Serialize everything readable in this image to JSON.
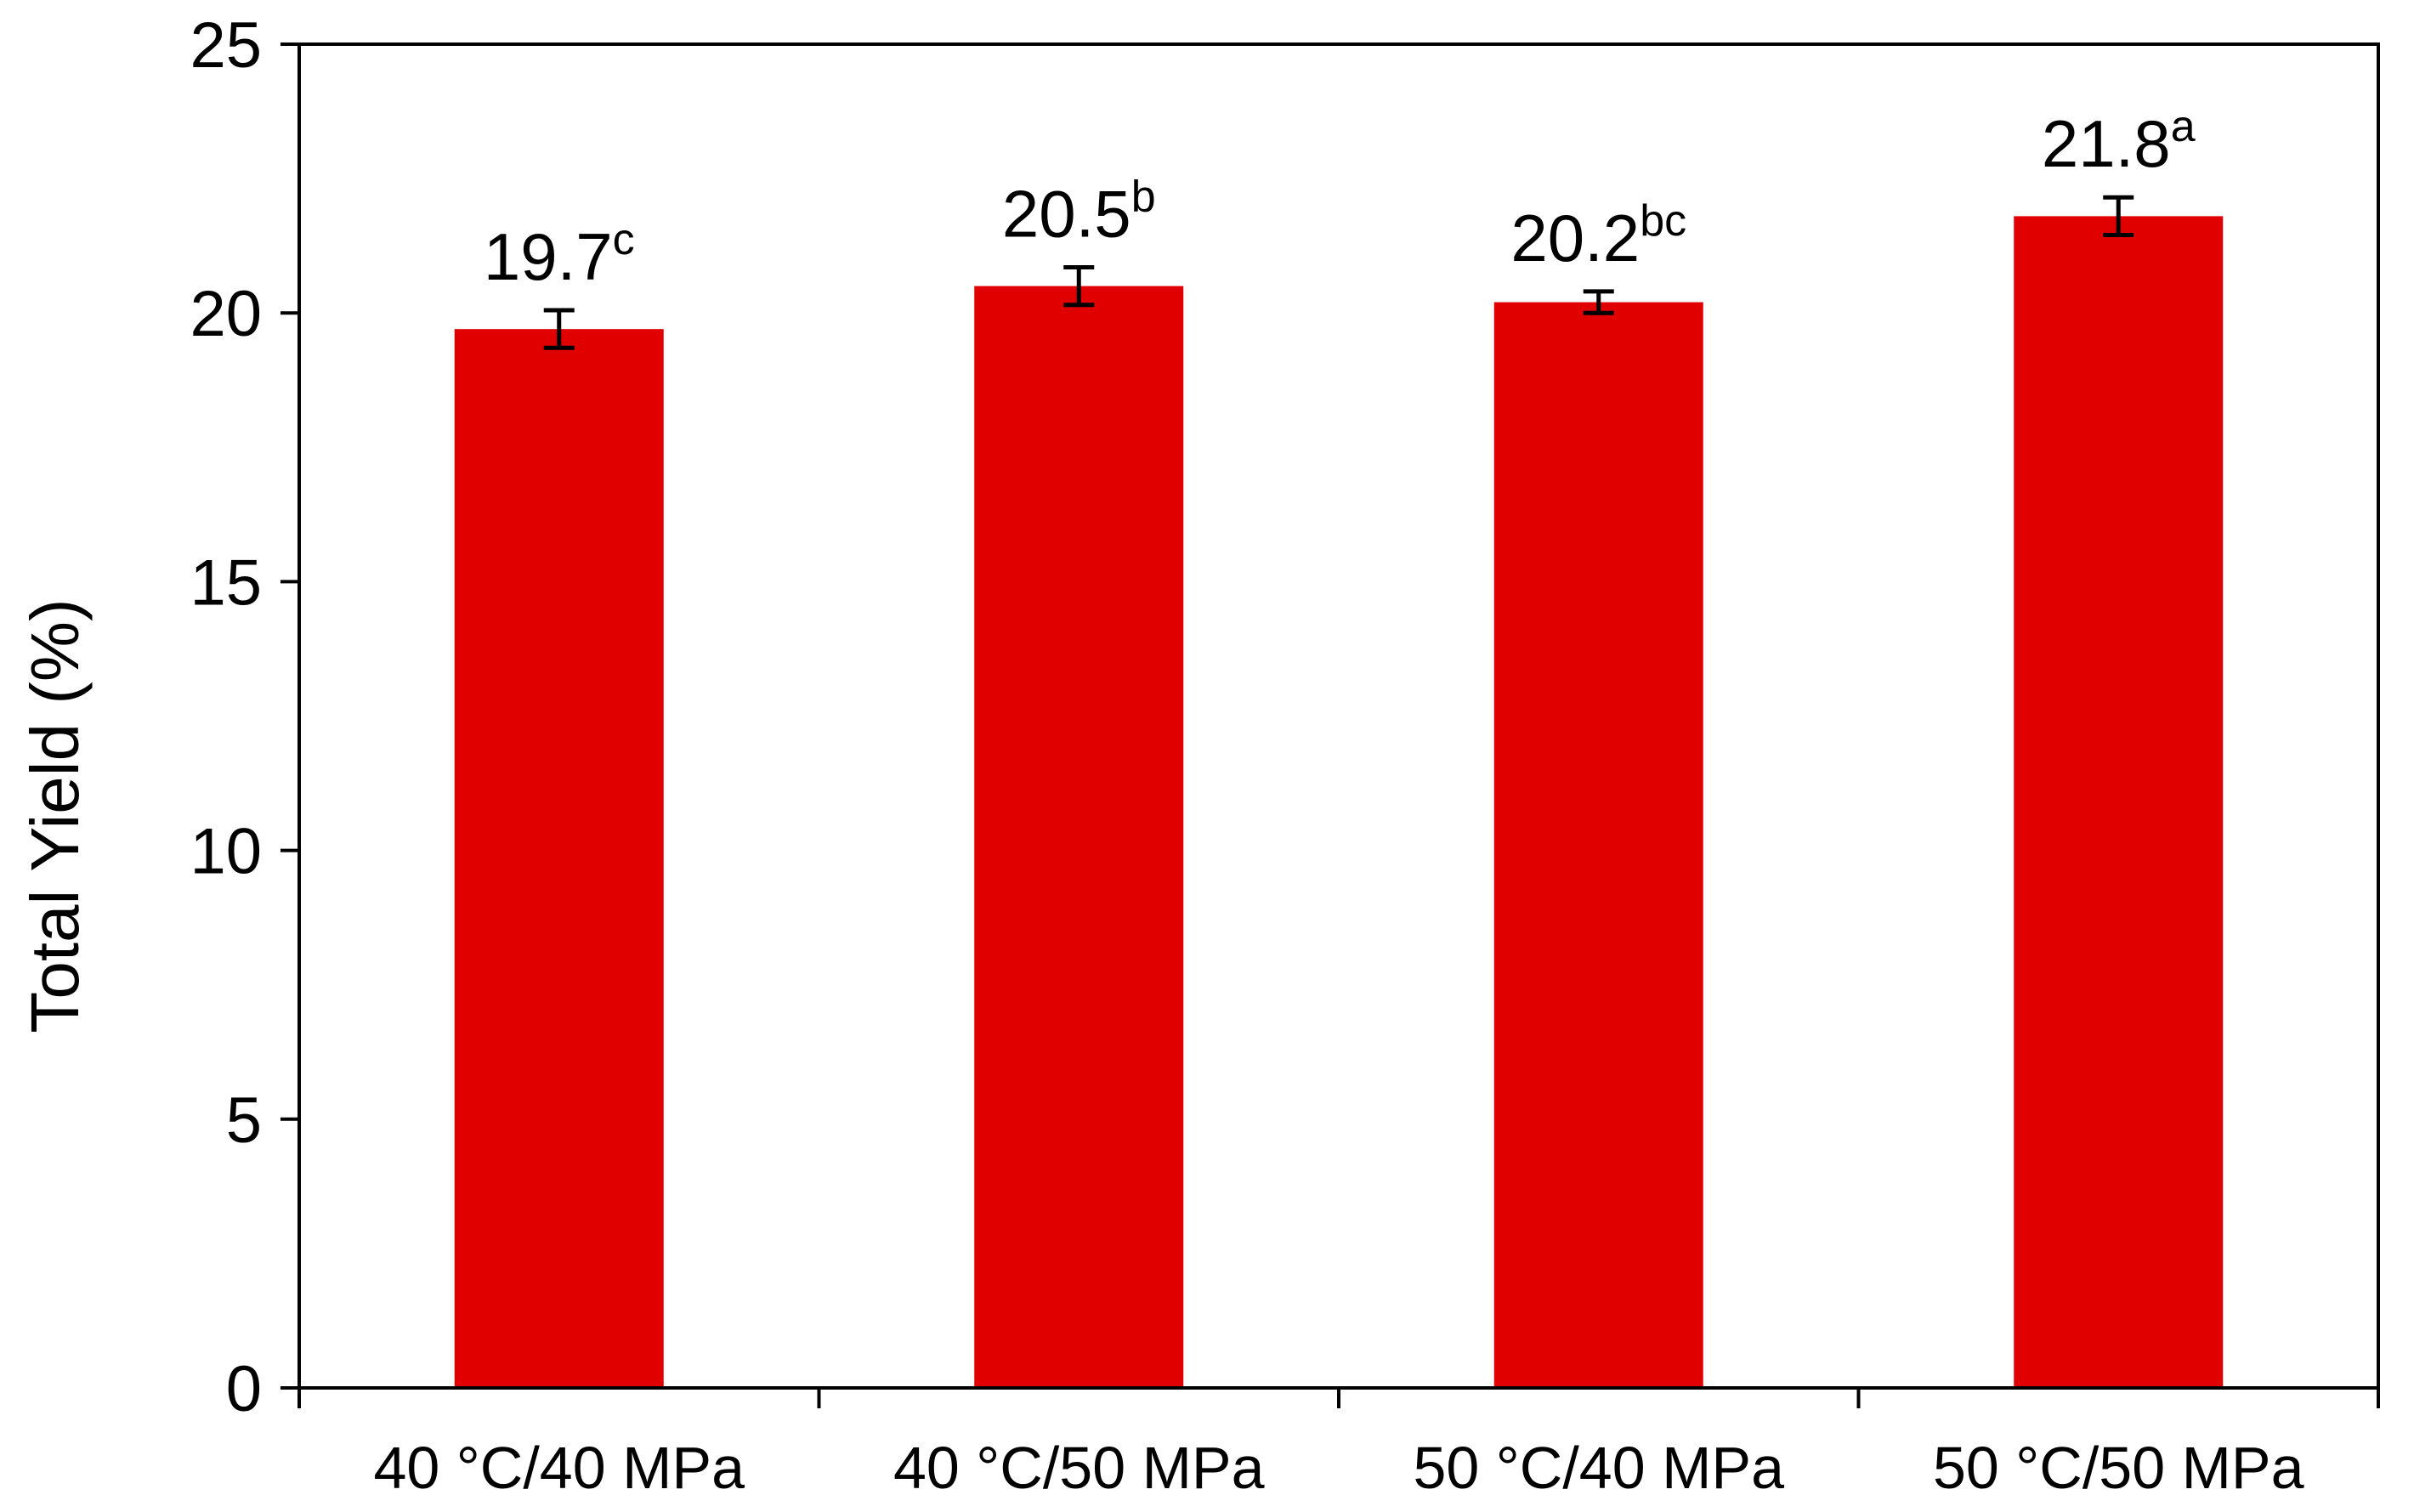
{
  "chart_data": {
    "type": "bar",
    "categories": [
      "40 °C/40 MPa",
      "40 °C/50 MPa",
      "50 °C/40 MPa",
      "50 °C/50 MPa"
    ],
    "values": [
      19.7,
      20.5,
      20.2,
      21.8
    ],
    "error": [
      0.35,
      0.35,
      0.2,
      0.35
    ],
    "value_labels": [
      "19.7",
      "20.5",
      "20.2",
      "21.8"
    ],
    "superscripts": [
      "c",
      "b",
      "bc",
      "a"
    ],
    "xlabel": "",
    "ylabel": "Total Yield (%)",
    "ylim": [
      0,
      25
    ],
    "yticks": [
      0,
      5,
      10,
      15,
      20,
      25
    ],
    "ytick_labels": [
      "0",
      "5",
      "10",
      "15",
      "20",
      "25"
    ],
    "grid": false,
    "colors": {
      "bar": "#e00000",
      "axis": "#000000",
      "error_bar": "#000000"
    }
  }
}
